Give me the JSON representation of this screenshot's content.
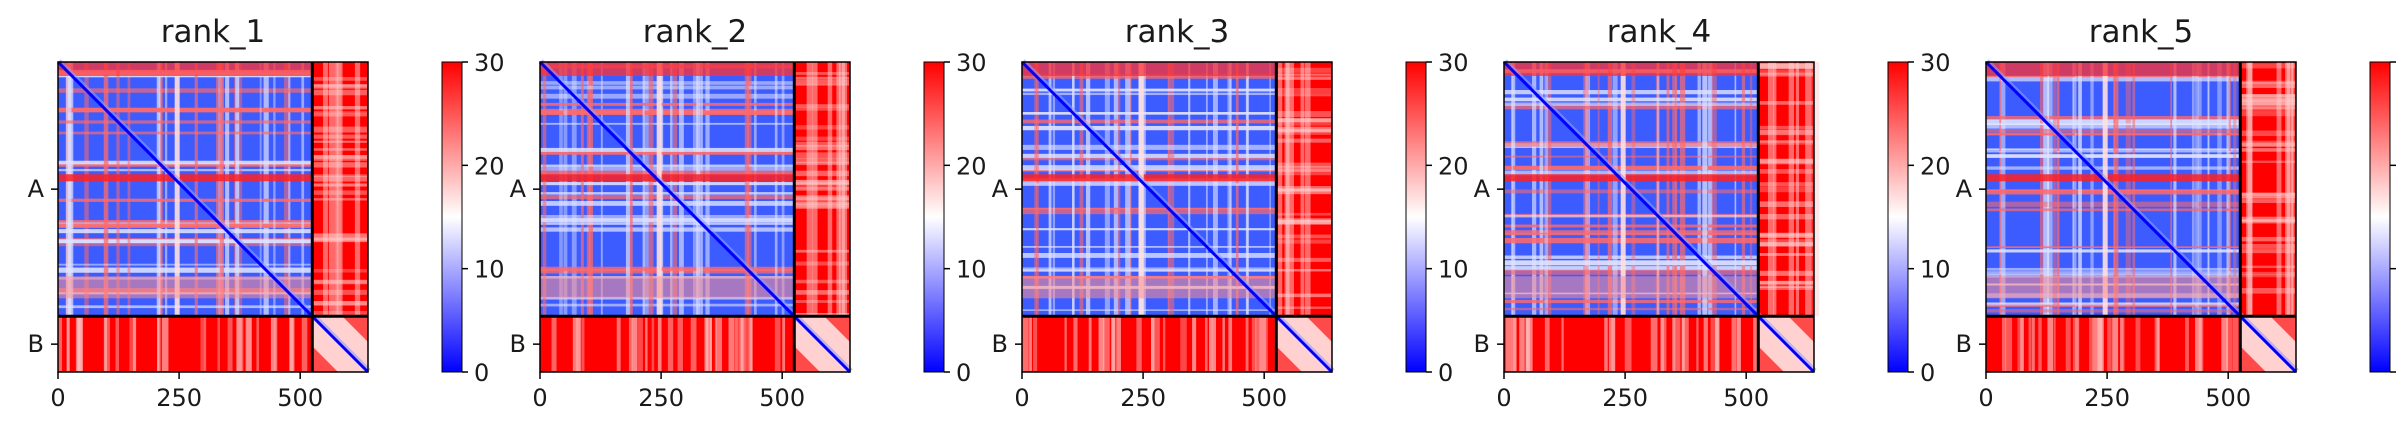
{
  "chart_data": {
    "type": "heatmap",
    "colormap": {
      "name": "bwr",
      "stops": [
        "#0000ff",
        "#ffffff",
        "#ff0000"
      ],
      "vmin": 0,
      "vmax": 30,
      "ticks": [
        0,
        10,
        20,
        30
      ]
    },
    "x_ticks": [
      0,
      250,
      500
    ],
    "x_range": [
      0,
      640
    ],
    "chains": [
      {
        "label": "A",
        "start": 0,
        "end": 525
      },
      {
        "label": "B",
        "start": 525,
        "end": 640
      }
    ],
    "panels": [
      {
        "title": "rank_1"
      },
      {
        "title": "rank_2"
      },
      {
        "title": "rank_3"
      },
      {
        "title": "rank_4"
      },
      {
        "title": "rank_5"
      }
    ]
  }
}
